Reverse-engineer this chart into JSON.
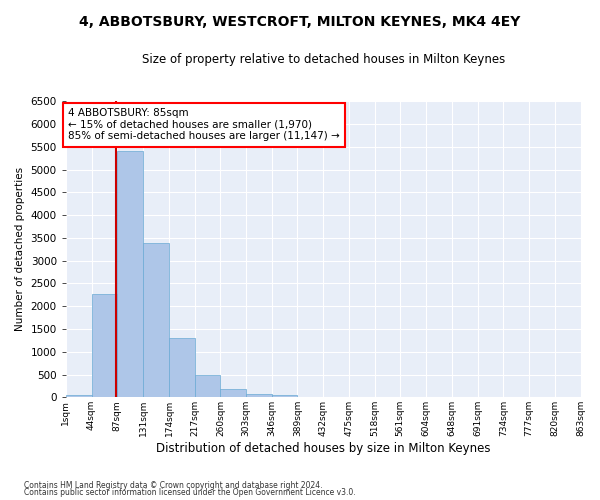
{
  "title": "4, ABBOTSBURY, WESTCROFT, MILTON KEYNES, MK4 4EY",
  "subtitle": "Size of property relative to detached houses in Milton Keynes",
  "xlabel": "Distribution of detached houses by size in Milton Keynes",
  "ylabel": "Number of detached properties",
  "footer1": "Contains HM Land Registry data © Crown copyright and database right 2024.",
  "footer2": "Contains public sector information licensed under the Open Government Licence v3.0.",
  "annotation_title": "4 ABBOTSBURY: 85sqm",
  "annotation_line1": "← 15% of detached houses are smaller (1,970)",
  "annotation_line2": "85% of semi-detached houses are larger (11,147) →",
  "marker_value": 85,
  "bins": [
    1,
    44,
    87,
    131,
    174,
    217,
    260,
    303,
    346,
    389,
    432,
    475,
    518,
    561,
    604,
    648,
    691,
    734,
    777,
    820,
    863
  ],
  "bin_labels": [
    "1sqm",
    "44sqm",
    "87sqm",
    "131sqm",
    "174sqm",
    "217sqm",
    "260sqm",
    "303sqm",
    "346sqm",
    "389sqm",
    "432sqm",
    "475sqm",
    "518sqm",
    "561sqm",
    "604sqm",
    "648sqm",
    "691sqm",
    "734sqm",
    "777sqm",
    "820sqm",
    "863sqm"
  ],
  "values": [
    60,
    2260,
    5420,
    3380,
    1300,
    490,
    175,
    80,
    40,
    0,
    0,
    0,
    0,
    0,
    0,
    0,
    0,
    0,
    0,
    0
  ],
  "bar_color": "#aec6e8",
  "bar_edge_color": "#6aaad4",
  "marker_color": "#cc0000",
  "bg_color": "#e8eef8",
  "fig_color": "#ffffff",
  "grid_color": "#ffffff",
  "ylim": [
    0,
    6500
  ],
  "yticks": [
    0,
    500,
    1000,
    1500,
    2000,
    2500,
    3000,
    3500,
    4000,
    4500,
    5000,
    5500,
    6000,
    6500
  ]
}
